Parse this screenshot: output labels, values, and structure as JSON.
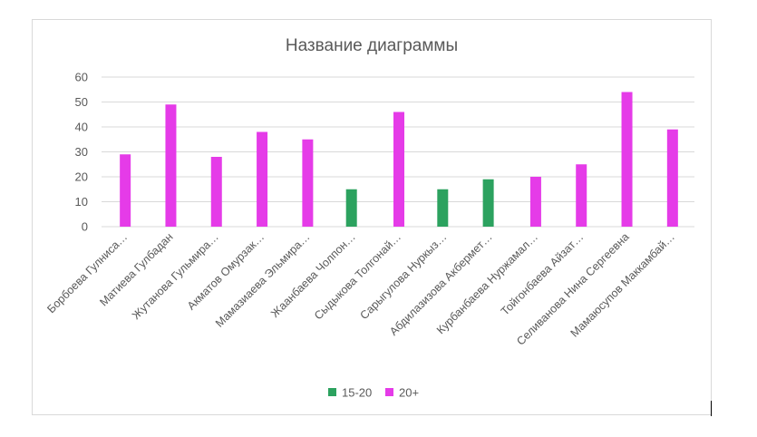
{
  "chart_data": {
    "type": "bar",
    "title": "Название диаграммы",
    "categories": [
      "Борбоева Гулниса…",
      "Матиева Гулбадан",
      "Жутанова Гульмира…",
      "Акматов Омурзак…",
      "Мамазиаева Эльмира…",
      "Жаанбаева Чолпон…",
      "Сыдыкова Толгонай…",
      "Сарыгулова Нуркыз…",
      "Абдилазизова Акбермет…",
      "Курбанбаева Нуржамал…",
      "Тойгонбаева Айзат…",
      "Селиванова Нина Сергеевна",
      "Мамаюсупов Маккамбай…"
    ],
    "series": [
      {
        "name": "15-20",
        "color": "#2ca25f",
        "values": [
          null,
          null,
          null,
          null,
          null,
          15,
          null,
          15,
          19,
          null,
          null,
          null,
          null
        ]
      },
      {
        "name": "20+",
        "color": "#e53be8",
        "values": [
          29,
          49,
          28,
          38,
          35,
          null,
          46,
          null,
          null,
          20,
          25,
          54,
          39
        ]
      }
    ],
    "ylim": [
      0,
      60
    ],
    "yticks": [
      "0",
      "10",
      "20",
      "30",
      "40",
      "50",
      "60"
    ],
    "grid": true,
    "legend_position": "bottom"
  }
}
